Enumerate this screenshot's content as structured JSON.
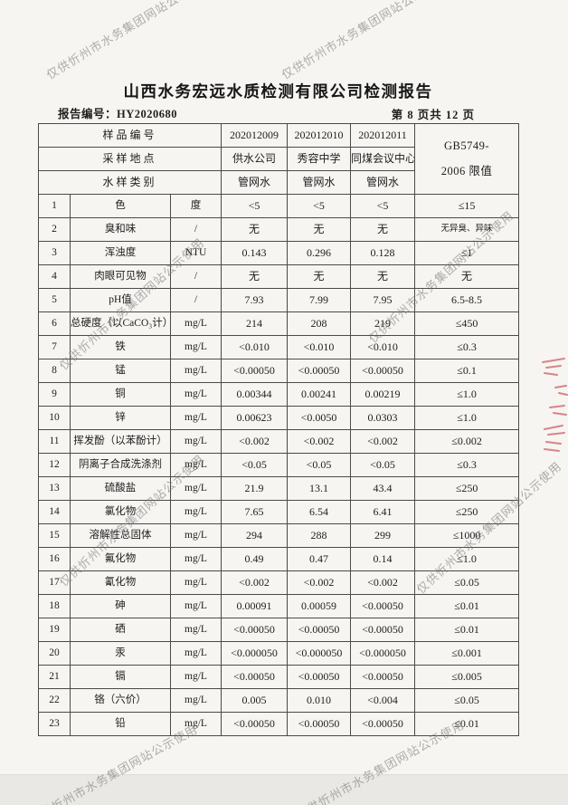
{
  "document": {
    "title": "山西水务宏远水质检测有限公司检测报告",
    "report_number": "报告编号：HY2020680",
    "page_indicator": "第 8 页共 12 页"
  },
  "watermark": {
    "text": "仅供忻州市水务集团网站公示使用"
  },
  "stamp": {
    "name": "red-seal-fragment"
  },
  "table": {
    "header": {
      "sample_id_label": "样品编号",
      "location_label": "采样地点",
      "type_label": "水样类别",
      "sample_ids": [
        "202012009",
        "202012010",
        "202012011"
      ],
      "locations": [
        "供水公司",
        "秀容中学",
        "同煤会议中心"
      ],
      "types": [
        "管网水",
        "管网水",
        "管网水"
      ],
      "limit_line1": "GB5749-",
      "limit_line2": "2006 限值"
    },
    "rows": [
      {
        "no": "1",
        "name": "色",
        "unit": "度",
        "v1": "<5",
        "v2": "<5",
        "v3": "<5",
        "limit": "≤15"
      },
      {
        "no": "2",
        "name": "臭和味",
        "unit": "/",
        "v1": "无",
        "v2": "无",
        "v3": "无",
        "limit": "无异臭、异味"
      },
      {
        "no": "3",
        "name": "浑浊度",
        "unit": "NTU",
        "v1": "0.143",
        "v2": "0.296",
        "v3": "0.128",
        "limit": "≤1"
      },
      {
        "no": "4",
        "name": "肉眼可见物",
        "unit": "/",
        "v1": "无",
        "v2": "无",
        "v3": "无",
        "limit": "无"
      },
      {
        "no": "5",
        "name": "pH值",
        "unit": "/",
        "v1": "7.93",
        "v2": "7.99",
        "v3": "7.95",
        "limit": "6.5-8.5"
      },
      {
        "no": "6",
        "name": "总硬度（以CaCO₃计）",
        "unit": "mg/L",
        "v1": "214",
        "v2": "208",
        "v3": "219",
        "limit": "≤450"
      },
      {
        "no": "7",
        "name": "铁",
        "unit": "mg/L",
        "v1": "<0.010",
        "v2": "<0.010",
        "v3": "<0.010",
        "limit": "≤0.3"
      },
      {
        "no": "8",
        "name": "锰",
        "unit": "mg/L",
        "v1": "<0.00050",
        "v2": "<0.00050",
        "v3": "<0.00050",
        "limit": "≤0.1"
      },
      {
        "no": "9",
        "name": "铜",
        "unit": "mg/L",
        "v1": "0.00344",
        "v2": "0.00241",
        "v3": "0.00219",
        "limit": "≤1.0"
      },
      {
        "no": "10",
        "name": "锌",
        "unit": "mg/L",
        "v1": "0.00623",
        "v2": "<0.0050",
        "v3": "0.0303",
        "limit": "≤1.0"
      },
      {
        "no": "11",
        "name": "挥发酚（以苯酚计）",
        "unit": "mg/L",
        "v1": "<0.002",
        "v2": "<0.002",
        "v3": "<0.002",
        "limit": "≤0.002"
      },
      {
        "no": "12",
        "name": "阴离子合成洗涤剂",
        "unit": "mg/L",
        "v1": "<0.05",
        "v2": "<0.05",
        "v3": "<0.05",
        "limit": "≤0.3"
      },
      {
        "no": "13",
        "name": "硫酸盐",
        "unit": "mg/L",
        "v1": "21.9",
        "v2": "13.1",
        "v3": "43.4",
        "limit": "≤250"
      },
      {
        "no": "14",
        "name": "氯化物",
        "unit": "mg/L",
        "v1": "7.65",
        "v2": "6.54",
        "v3": "6.41",
        "limit": "≤250"
      },
      {
        "no": "15",
        "name": "溶解性总固体",
        "unit": "mg/L",
        "v1": "294",
        "v2": "288",
        "v3": "299",
        "limit": "≤1000"
      },
      {
        "no": "16",
        "name": "氟化物",
        "unit": "mg/L",
        "v1": "0.49",
        "v2": "0.47",
        "v3": "0.14",
        "limit": "≤1.0"
      },
      {
        "no": "17",
        "name": "氰化物",
        "unit": "mg/L",
        "v1": "<0.002",
        "v2": "<0.002",
        "v3": "<0.002",
        "limit": "≤0.05"
      },
      {
        "no": "18",
        "name": "砷",
        "unit": "mg/L",
        "v1": "0.00091",
        "v2": "0.00059",
        "v3": "<0.00050",
        "limit": "≤0.01"
      },
      {
        "no": "19",
        "name": "硒",
        "unit": "mg/L",
        "v1": "<0.00050",
        "v2": "<0.00050",
        "v3": "<0.00050",
        "limit": "≤0.01"
      },
      {
        "no": "20",
        "name": "汞",
        "unit": "mg/L",
        "v1": "<0.000050",
        "v2": "<0.000050",
        "v3": "<0.000050",
        "limit": "≤0.001"
      },
      {
        "no": "21",
        "name": "镉",
        "unit": "mg/L",
        "v1": "<0.00050",
        "v2": "<0.00050",
        "v3": "<0.00050",
        "limit": "≤0.005"
      },
      {
        "no": "22",
        "name": "铬（六价）",
        "unit": "mg/L",
        "v1": "0.005",
        "v2": "0.010",
        "v3": "<0.004",
        "limit": "≤0.05"
      },
      {
        "no": "23",
        "name": "铅",
        "unit": "mg/L",
        "v1": "<0.00050",
        "v2": "<0.00050",
        "v3": "<0.00050",
        "limit": "≤0.01"
      }
    ]
  }
}
